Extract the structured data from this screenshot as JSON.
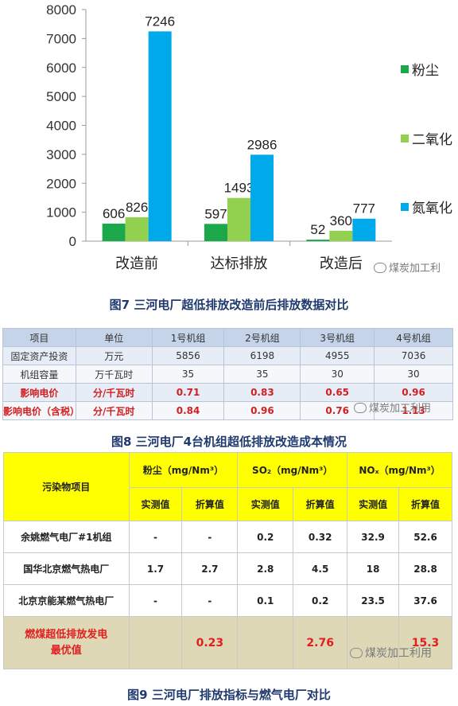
{
  "figure7": {
    "caption": "图7 三河电厂超低排放改造前后排放数据对比",
    "watermark": "煤炭加工利",
    "chart_data": {
      "type": "bar",
      "categories": [
        "改造前",
        "达标排放",
        "改造后"
      ],
      "series": [
        {
          "name": "粉尘",
          "values": [
            606,
            597,
            52
          ],
          "color": "#1aa84a"
        },
        {
          "name": "二氧化",
          "values": [
            826,
            1493,
            360
          ],
          "color": "#92d050"
        },
        {
          "name": "氮氧化",
          "values": [
            7246,
            2986,
            777
          ],
          "color": "#00a9ea"
        }
      ],
      "yticks": [
        "0",
        "1000",
        "2000",
        "3000",
        "4000",
        "5000",
        "6000",
        "7000",
        "8000"
      ],
      "ylim": [
        0,
        8000
      ],
      "grid": false,
      "legend": "right"
    }
  },
  "figure8": {
    "caption": "图8 三河电厂4台机组超低排放改造成本情况",
    "watermark": "煤炭加工利用",
    "headers": [
      "项目",
      "单位",
      "1号机组",
      "2号机组",
      "3号机组",
      "4号机组"
    ],
    "rows": [
      [
        "固定资产投资",
        "万元",
        "5856",
        "6198",
        "4955",
        "7036"
      ],
      [
        "机组容量",
        "万千瓦时",
        "35",
        "35",
        "30",
        "30"
      ],
      [
        "影响电价",
        "分/千瓦时",
        "0.71",
        "0.83",
        "0.65",
        "0.96"
      ],
      [
        "影响电价（含税）",
        "分/千瓦时",
        "0.84",
        "0.96",
        "0.76",
        "1.13"
      ]
    ]
  },
  "figure9": {
    "caption": "图9 三河电厂排放指标与燃气电厂对比",
    "watermark": "煤炭加工利用",
    "header_item": "污染物项目",
    "groups": [
      "粉尘（mg/Nm³）",
      "SO₂（mg/Nm³）",
      "NOₓ（mg/Nm³）"
    ],
    "subheaders": [
      "实测值",
      "折算值",
      "实测值",
      "折算值",
      "实测值",
      "折算值"
    ],
    "rows": [
      {
        "name": "余姚燃气电厂#1机组",
        "values": [
          "-",
          "-",
          "0.2",
          "0.32",
          "32.9",
          "52.6"
        ]
      },
      {
        "name": "国华北京燃气热电厂",
        "values": [
          "1.7",
          "2.7",
          "2.8",
          "4.5",
          "18",
          "28.8"
        ]
      },
      {
        "name": "北京京能某燃气热电厂",
        "values": [
          "-",
          "-",
          "0.1",
          "0.2",
          "23.5",
          "37.6"
        ]
      }
    ],
    "last_row": {
      "name_line1": "燃煤超低排放发电",
      "name_line2": "最优值",
      "values": [
        "",
        "0.23",
        "",
        "2.76",
        "",
        "15.3"
      ]
    }
  }
}
